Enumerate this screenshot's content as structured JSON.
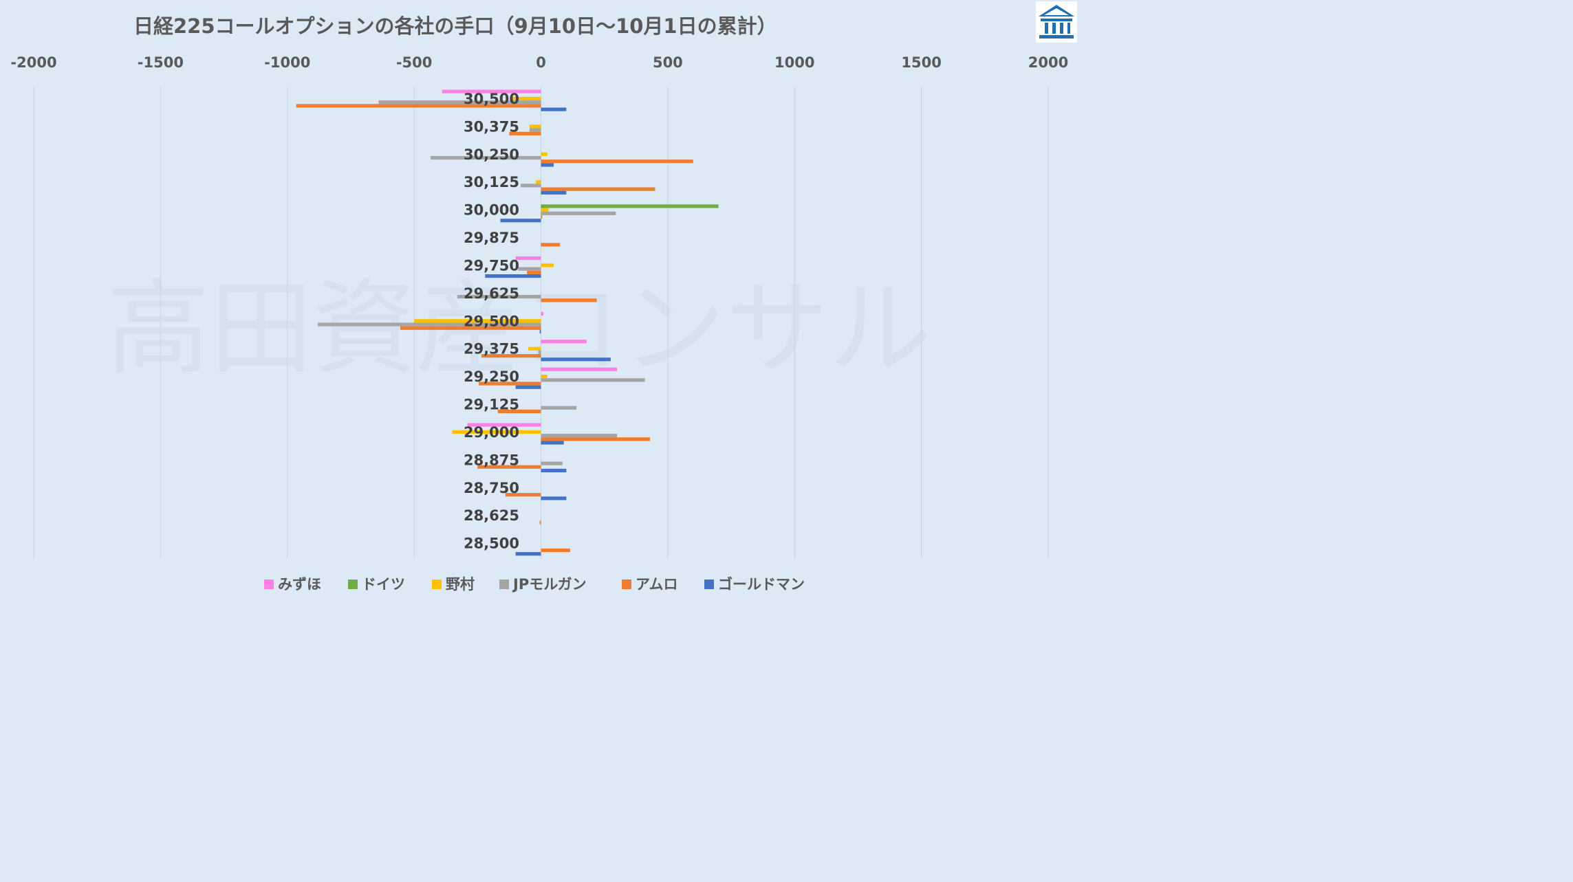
{
  "chart_data": {
    "type": "bar",
    "orientation": "horizontal",
    "title": "日経225コールオプションの各社の手口（9月10日～10月1日の累計）",
    "xlabel": "",
    "ylabel": "",
    "xlim": [
      -2000,
      2000
    ],
    "xticks": [
      -2000,
      -1500,
      -1000,
      -500,
      0,
      500,
      1000,
      1500,
      2000
    ],
    "xtick_labels": [
      "-2000",
      "-1500",
      "-1000",
      "-500",
      "0",
      "500",
      "1000",
      "1500",
      "2000"
    ],
    "x_axis_position": "top",
    "grid": true,
    "legend_position": "bottom",
    "categories": [
      "30,500",
      "30,375",
      "30,250",
      "30,125",
      "30,000",
      "29,875",
      "29,750",
      "29,625",
      "29,500",
      "29,375",
      "29,250",
      "29,125",
      "29,000",
      "28,875",
      "28,750",
      "28,625",
      "28,500"
    ],
    "series": [
      {
        "name": "みずほ",
        "color": "#ff7fe6",
        "values": [
          -390,
          0,
          0,
          0,
          0,
          0,
          -100,
          0,
          10,
          180,
          300,
          0,
          -290,
          0,
          0,
          0,
          0
        ]
      },
      {
        "name": "ドイツ",
        "color": "#70ad47",
        "values": [
          0,
          0,
          0,
          0,
          700,
          0,
          0,
          0,
          0,
          0,
          0,
          0,
          0,
          0,
          0,
          0,
          0
        ]
      },
      {
        "name": "野村",
        "color": "#ffc000",
        "values": [
          -120,
          -45,
          25,
          -20,
          30,
          0,
          50,
          0,
          -500,
          -50,
          25,
          0,
          -350,
          0,
          0,
          0,
          0
        ]
      },
      {
        "name": "JPモルガン",
        "color": "#a5a5a5",
        "values": [
          -640,
          -45,
          -435,
          -80,
          295,
          0,
          -90,
          -330,
          -880,
          -10,
          410,
          140,
          300,
          85,
          0,
          0,
          0
        ]
      },
      {
        "name": "アムロ",
        "color": "#ed7d31",
        "values": [
          -965,
          -125,
          600,
          450,
          5,
          75,
          -55,
          220,
          -555,
          -235,
          -245,
          -170,
          430,
          -250,
          -140,
          -5,
          115
        ]
      },
      {
        "name": "ゴールドマン",
        "color": "#4472c4",
        "values": [
          100,
          0,
          50,
          100,
          -160,
          0,
          -220,
          0,
          -5,
          275,
          -100,
          0,
          90,
          100,
          100,
          0,
          -100
        ]
      }
    ]
  },
  "legend_order": [
    "みずほ",
    "ドイツ",
    "野村",
    "JPモルガン",
    "アムロ",
    "ゴールドマン"
  ],
  "watermark": "高田資産コンサル",
  "logo": {
    "icon": "bank-building-icon",
    "color": "#1f6fb5"
  }
}
